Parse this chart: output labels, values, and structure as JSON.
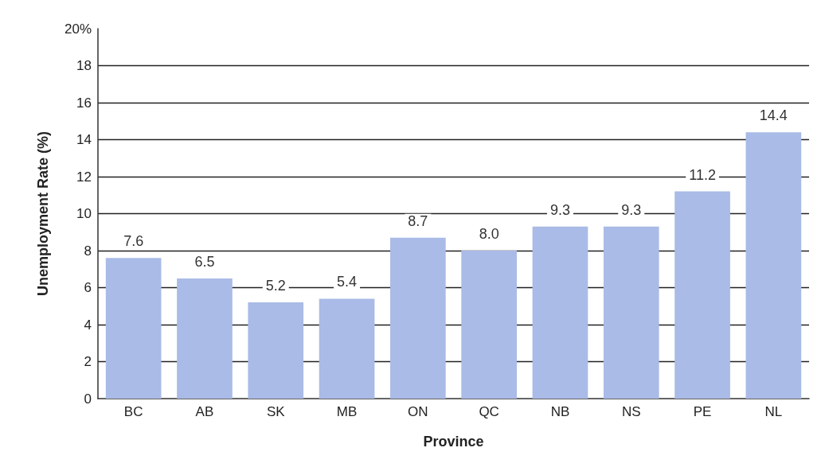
{
  "chart_data": {
    "type": "bar",
    "xlabel": "Province",
    "ylabel": "Unemployment Rate (%)",
    "categories": [
      "BC",
      "AB",
      "SK",
      "MB",
      "ON",
      "QC",
      "NB",
      "NS",
      "PE",
      "NL"
    ],
    "values": [
      7.6,
      6.5,
      5.2,
      5.4,
      8.7,
      8.0,
      9.3,
      9.3,
      11.2,
      14.4
    ],
    "value_labels": [
      "7.6",
      "6.5",
      "5.2",
      "5.4",
      "8.7",
      "8.0",
      "9.3",
      "9.3",
      "11.2",
      "14.4"
    ],
    "color": "#a9bbe6",
    "ylim": [
      0,
      20
    ],
    "yticks": [
      0,
      2,
      4,
      6,
      8,
      10,
      12,
      14,
      16,
      18,
      {
        "value": 20,
        "label": "20%"
      }
    ],
    "grid": "y"
  }
}
